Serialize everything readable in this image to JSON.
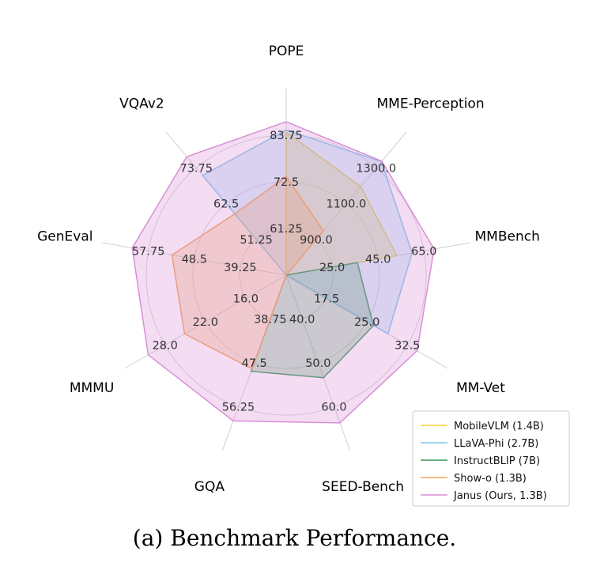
{
  "caption": "(a) Benchmark Performance.",
  "chart_data": {
    "type": "radar",
    "title": "",
    "axes": [
      "POPE",
      "MME-Perception",
      "MMBench",
      "MM-Vet",
      "SEED-Bench",
      "GQA",
      "MMMU",
      "GenEval",
      "VQAv2"
    ],
    "tick_labels": [
      [
        "61.25",
        "72.5",
        "83.75"
      ],
      [
        "900.0",
        "1100.0",
        "1300.0"
      ],
      [
        "25.0",
        "45.0",
        "65.0"
      ],
      [
        "17.5",
        "25.0",
        "32.5"
      ],
      [
        "40.0",
        "50.0",
        "60.0"
      ],
      [
        "38.75",
        "47.5",
        "56.25"
      ],
      [
        "16.0",
        "22.0",
        "28.0"
      ],
      [
        "39.25",
        "48.5",
        "57.75"
      ],
      [
        "51.25",
        "62.5",
        "73.75"
      ]
    ],
    "axis_ranges": [
      [
        50.0,
        95.0
      ],
      [
        700.0,
        1500.0
      ],
      [
        5.0,
        85.0
      ],
      [
        10.0,
        40.0
      ],
      [
        30.0,
        70.0
      ],
      [
        30.0,
        65.0
      ],
      [
        10.0,
        34.0
      ],
      [
        30.0,
        67.0
      ],
      [
        40.0,
        85.0
      ]
    ],
    "grid": true,
    "legend_position": "bottom-right",
    "series": [
      {
        "name": "MobileVLM (1.4B)",
        "color": "#f2d12e",
        "values": [
          84.5,
          1196.2,
          53.2,
          null,
          null,
          null,
          null,
          null,
          null
        ]
      },
      {
        "name": "LLaVA-Phi (2.7B)",
        "color": "#7ec8ec",
        "values": [
          85.0,
          1335.1,
          59.8,
          28.9,
          null,
          null,
          null,
          null,
          71.4
        ]
      },
      {
        "name": "InstructBLIP (7B)",
        "color": "#3a9a5a",
        "values": [
          null,
          null,
          36.0,
          26.2,
          53.4,
          49.2,
          null,
          null,
          null
        ]
      },
      {
        "name": "Show-o (1.3B)",
        "color": "#f0a35a",
        "values": [
          73.8,
          948.4,
          null,
          null,
          null,
          48.7,
          25.1,
          53.0,
          59.3
        ]
      },
      {
        "name": "Janus (Ours, 1.3B)",
        "color": "#d98fd6",
        "values": [
          87.0,
          1338.0,
          69.4,
          34.3,
          63.7,
          59.1,
          30.5,
          61.0,
          77.3
        ]
      }
    ]
  }
}
